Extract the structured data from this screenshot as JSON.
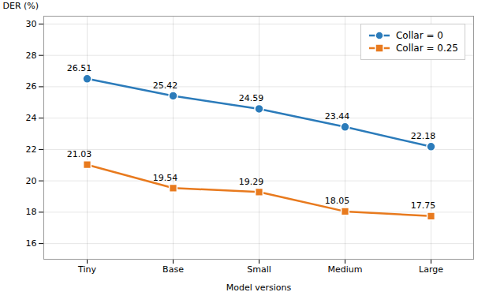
{
  "chart_data": {
    "type": "line",
    "categories": [
      "Tiny",
      "Base",
      "Small",
      "Medium",
      "Large"
    ],
    "series": [
      {
        "name": "Collar = 0",
        "color": "#2b7bba",
        "marker": "circle",
        "values": [
          26.51,
          25.42,
          24.59,
          23.44,
          22.18
        ]
      },
      {
        "name": "Collar = 0.25",
        "color": "#e87a1e",
        "marker": "square",
        "values": [
          21.03,
          19.54,
          19.29,
          18.05,
          17.75
        ]
      }
    ],
    "xlabel": "Model versions",
    "ylabel": "DER (%)",
    "ylim": [
      15.0,
      30.5
    ],
    "yticks": [
      16,
      18,
      20,
      22,
      24,
      26,
      28,
      30
    ],
    "grid": true,
    "legend": "upper right",
    "data_labels": true
  }
}
